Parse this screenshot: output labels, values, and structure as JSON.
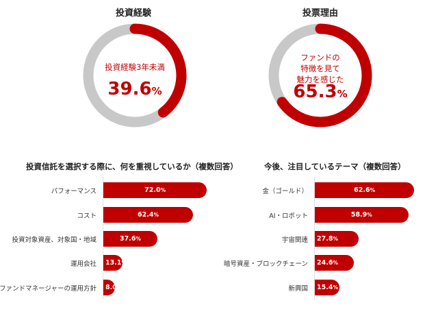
{
  "chart_data": [
    {
      "type": "pie",
      "title": "投資経験",
      "center_label": "投資経験3年未満",
      "value": 39.6,
      "value_text": "39.6",
      "unit": "%",
      "colors": {
        "value": "#c00000",
        "rest": "#c8c8c8"
      }
    },
    {
      "type": "pie",
      "title": "投票理由",
      "center_label": [
        "ファンドの",
        "特徴を見て",
        "魅力を感じた"
      ],
      "value": 65.3,
      "value_text": "65.3",
      "unit": "%",
      "colors": {
        "value": "#c00000",
        "rest": "#c8c8c8"
      }
    },
    {
      "type": "bar",
      "orientation": "horizontal",
      "title": "投資信託を選択する際に、何を重視しているか（複数回答）",
      "categories": [
        "パフォーマンス",
        "コスト",
        "投資対象資産、対象国・地域",
        "運用会社",
        "ファンドマネージャーの運用方針"
      ],
      "values": [
        72.0,
        62.4,
        37.6,
        13.1,
        8.0
      ],
      "labels": [
        "72.0",
        "62.4",
        "37.6",
        "13.1",
        "8.0"
      ],
      "unit": "%",
      "color": "#c00000"
    },
    {
      "type": "bar",
      "orientation": "horizontal",
      "title": "今後、注目しているテーマ（複数回答）",
      "categories": [
        "金（ゴールド）",
        "AI・ロボット",
        "宇宙関連",
        "暗号資産・ブロックチェーン",
        "新興国"
      ],
      "values": [
        62.6,
        58.9,
        27.8,
        24.6,
        15.4
      ],
      "labels": [
        "62.6",
        "58.9",
        "27.8",
        "24.6",
        "15.4"
      ],
      "unit": "%",
      "color": "#c00000"
    }
  ]
}
